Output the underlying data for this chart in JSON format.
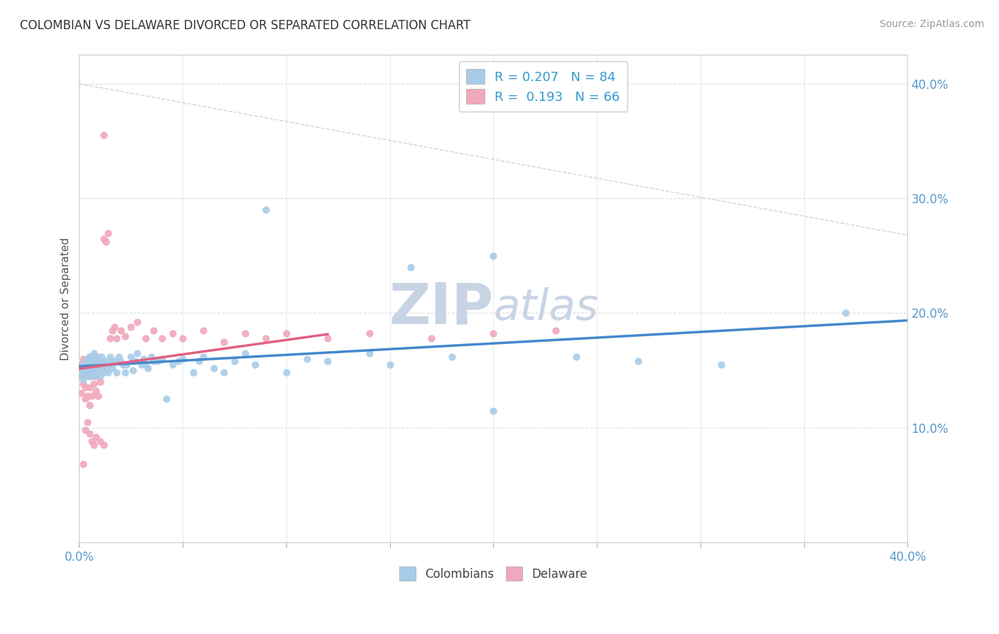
{
  "title": "COLOMBIAN VS DELAWARE DIVORCED OR SEPARATED CORRELATION CHART",
  "source_text": "Source: ZipAtlas.com",
  "ylabel": "Divorced or Separated",
  "xlim": [
    0.0,
    0.4
  ],
  "ylim": [
    0.0,
    0.4
  ],
  "xticks": [
    0.0,
    0.05,
    0.1,
    0.15,
    0.2,
    0.25,
    0.3,
    0.35,
    0.4
  ],
  "yticks": [
    0.1,
    0.2,
    0.3,
    0.4
  ],
  "ytick_labels": [
    "10.0%",
    "20.0%",
    "30.0%",
    "40.0%"
  ],
  "legend_R1": "0.207",
  "legend_N1": "84",
  "legend_R2": "0.193",
  "legend_N2": "66",
  "color_colombians": "#A8CCE8",
  "color_delaware": "#F0A8BC",
  "color_line_colombians": "#4488CC",
  "color_line_delaware": "#E06080",
  "color_dashed": "#C8C8D8",
  "watermark_color": "#C8D4E4",
  "background_color": "#FFFFFF",
  "colombians_x": [
    0.001,
    0.001,
    0.002,
    0.002,
    0.002,
    0.003,
    0.003,
    0.003,
    0.004,
    0.004,
    0.004,
    0.005,
    0.005,
    0.005,
    0.005,
    0.006,
    0.006,
    0.006,
    0.007,
    0.007,
    0.007,
    0.008,
    0.008,
    0.009,
    0.009,
    0.01,
    0.01,
    0.01,
    0.011,
    0.011,
    0.012,
    0.012,
    0.013,
    0.013,
    0.014,
    0.015,
    0.015,
    0.016,
    0.016,
    0.017,
    0.018,
    0.019,
    0.02,
    0.021,
    0.022,
    0.023,
    0.025,
    0.026,
    0.027,
    0.028,
    0.03,
    0.031,
    0.032,
    0.033,
    0.035,
    0.036,
    0.038,
    0.04,
    0.042,
    0.045,
    0.048,
    0.05,
    0.055,
    0.058,
    0.06,
    0.065,
    0.07,
    0.075,
    0.08,
    0.085,
    0.09,
    0.1,
    0.11,
    0.12,
    0.14,
    0.16,
    0.18,
    0.2,
    0.24,
    0.27,
    0.31,
    0.37,
    0.2,
    0.15
  ],
  "colombians_y": [
    0.145,
    0.148,
    0.15,
    0.142,
    0.155,
    0.158,
    0.148,
    0.152,
    0.146,
    0.155,
    0.16,
    0.145,
    0.15,
    0.158,
    0.162,
    0.148,
    0.155,
    0.16,
    0.152,
    0.165,
    0.145,
    0.158,
    0.148,
    0.155,
    0.162,
    0.15,
    0.145,
    0.158,
    0.152,
    0.162,
    0.155,
    0.148,
    0.152,
    0.158,
    0.148,
    0.155,
    0.162,
    0.158,
    0.152,
    0.158,
    0.148,
    0.162,
    0.158,
    0.155,
    0.148,
    0.155,
    0.162,
    0.15,
    0.158,
    0.165,
    0.155,
    0.16,
    0.155,
    0.152,
    0.162,
    0.158,
    0.158,
    0.16,
    0.125,
    0.155,
    0.158,
    0.16,
    0.148,
    0.158,
    0.162,
    0.152,
    0.148,
    0.158,
    0.165,
    0.155,
    0.29,
    0.148,
    0.16,
    0.158,
    0.165,
    0.24,
    0.162,
    0.115,
    0.162,
    0.158,
    0.155,
    0.2,
    0.25,
    0.155
  ],
  "delaware_x": [
    0.001,
    0.001,
    0.001,
    0.002,
    0.002,
    0.002,
    0.003,
    0.003,
    0.003,
    0.003,
    0.004,
    0.004,
    0.004,
    0.005,
    0.005,
    0.005,
    0.005,
    0.006,
    0.006,
    0.006,
    0.007,
    0.007,
    0.008,
    0.008,
    0.008,
    0.009,
    0.009,
    0.01,
    0.01,
    0.011,
    0.012,
    0.012,
    0.013,
    0.014,
    0.015,
    0.016,
    0.017,
    0.018,
    0.02,
    0.022,
    0.025,
    0.028,
    0.032,
    0.036,
    0.04,
    0.045,
    0.05,
    0.06,
    0.07,
    0.08,
    0.09,
    0.1,
    0.12,
    0.14,
    0.17,
    0.2,
    0.23,
    0.004,
    0.003,
    0.002,
    0.005,
    0.006,
    0.007,
    0.008,
    0.01,
    0.012
  ],
  "delaware_y": [
    0.145,
    0.155,
    0.13,
    0.148,
    0.16,
    0.138,
    0.145,
    0.155,
    0.125,
    0.135,
    0.148,
    0.155,
    0.128,
    0.162,
    0.145,
    0.135,
    0.12,
    0.158,
    0.145,
    0.128,
    0.152,
    0.138,
    0.162,
    0.145,
    0.132,
    0.155,
    0.128,
    0.158,
    0.14,
    0.158,
    0.355,
    0.265,
    0.262,
    0.27,
    0.178,
    0.185,
    0.188,
    0.178,
    0.185,
    0.18,
    0.188,
    0.192,
    0.178,
    0.185,
    0.178,
    0.182,
    0.178,
    0.185,
    0.175,
    0.182,
    0.178,
    0.182,
    0.178,
    0.182,
    0.178,
    0.182,
    0.185,
    0.105,
    0.098,
    0.068,
    0.095,
    0.088,
    0.085,
    0.092,
    0.088,
    0.085
  ]
}
